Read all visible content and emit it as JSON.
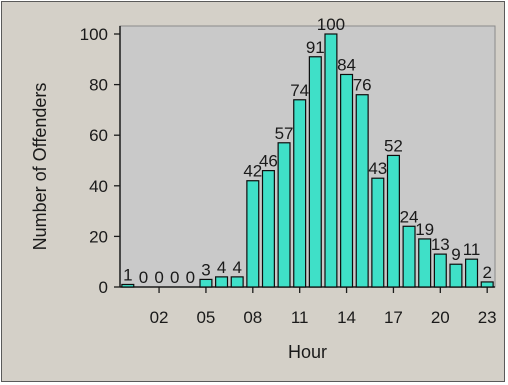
{
  "chart_data": {
    "type": "bar",
    "xlabel": "Hour",
    "ylabel": "Number of Offenders",
    "ylim": [
      0,
      100
    ],
    "yticks": [
      0,
      20,
      40,
      60,
      80,
      100
    ],
    "xtick_labels": [
      "02",
      "05",
      "08",
      "11",
      "14",
      "17",
      "20",
      "23"
    ],
    "categories": [
      "00",
      "01",
      "02",
      "03",
      "04",
      "05",
      "06",
      "07",
      "08",
      "09",
      "10",
      "11",
      "12",
      "13",
      "14",
      "15",
      "16",
      "17",
      "18",
      "19",
      "20",
      "21",
      "22",
      "23"
    ],
    "values": [
      1,
      0,
      0,
      0,
      0,
      3,
      4,
      4,
      42,
      46,
      57,
      74,
      91,
      100,
      84,
      76,
      43,
      52,
      24,
      19,
      13,
      9,
      11,
      2
    ],
    "data_labels": [
      "1",
      "0",
      "0",
      "0",
      "0",
      "3",
      "4",
      "4",
      "42",
      "46",
      "57",
      "74",
      "91",
      "100",
      "84",
      "76",
      "43",
      "52",
      "24",
      "19",
      "13",
      "9",
      "11",
      "2"
    ],
    "grid": false,
    "colors": {
      "bar": "#3fe0c8",
      "bar_stroke": "#0d0d0d",
      "plot_bg": "#c9c9c9",
      "panel_bg": "#d4d0c8"
    }
  }
}
